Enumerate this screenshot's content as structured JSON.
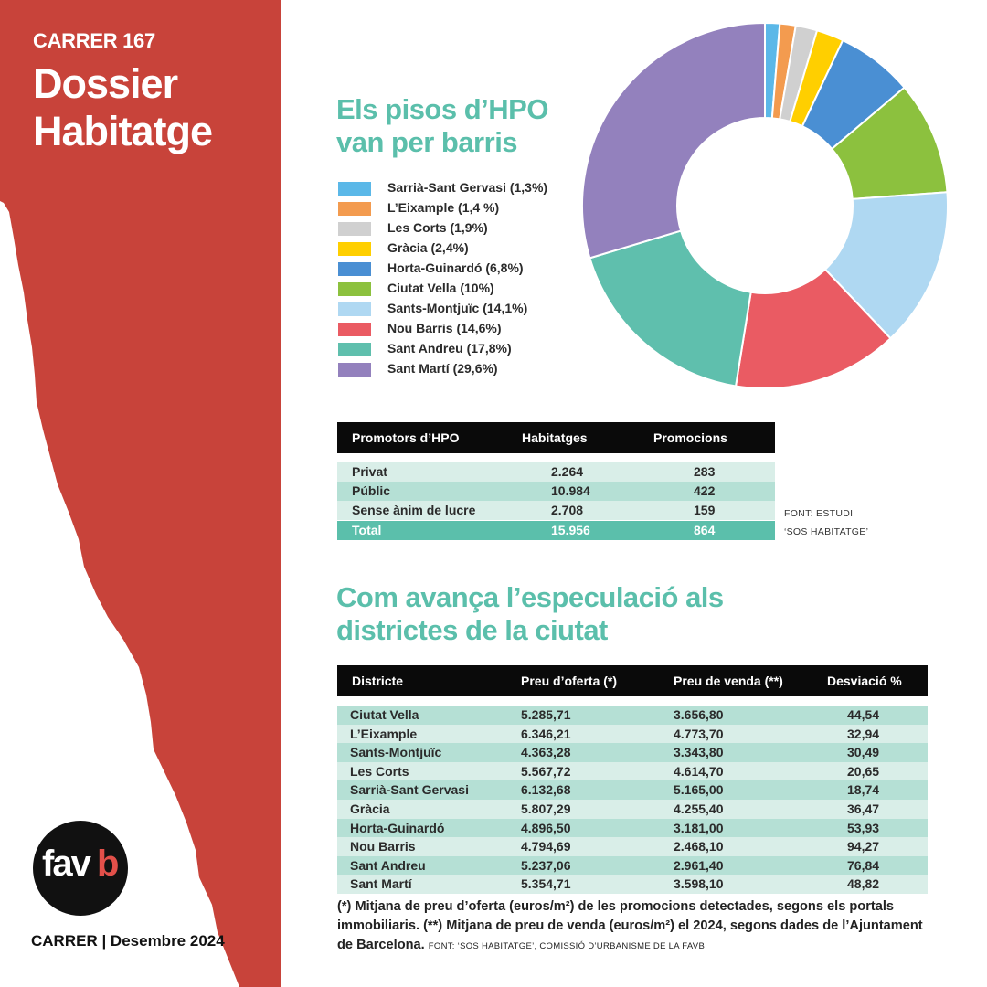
{
  "sidebar": {
    "issue": "CARRER 167",
    "title": "Dossier Habitatge",
    "footer": "CARRER | Desembre 2024",
    "logo_text": "fav",
    "logo_b": "b",
    "color": "#c8433a"
  },
  "section1": {
    "title": "Els pisos d’HPO van per barris"
  },
  "chart_data": {
    "type": "pie",
    "subtype": "donut",
    "title": "Els pisos d’HPO van per barris",
    "unit": "%",
    "slices": [
      {
        "label": "Sarrià-Sant Gervasi (1,3%)",
        "name": "Sarrià-Sant Gervasi",
        "value": 1.3,
        "color": "#5bb8e8"
      },
      {
        "label": "L’Eixample (1,4 %)",
        "name": "L’Eixample",
        "value": 1.4,
        "color": "#f39b4f"
      },
      {
        "label": "Les Corts (1,9%)",
        "name": "Les Corts",
        "value": 1.9,
        "color": "#d0d0d0"
      },
      {
        "label": "Gràcia (2,4%)",
        "name": "Gràcia",
        "value": 2.4,
        "color": "#ffcf00"
      },
      {
        "label": "Horta-Guinardó (6,8%)",
        "name": "Horta-Guinardó",
        "value": 6.8,
        "color": "#4a8fd3"
      },
      {
        "label": "Ciutat Vella (10%)",
        "name": "Ciutat Vella",
        "value": 10,
        "color": "#8cc13e"
      },
      {
        "label": "Sants-Montjuïc (14,1%)",
        "name": "Sants-Montjuïc",
        "value": 14.1,
        "color": "#afd8f2"
      },
      {
        "label": "Nou Barris (14,6%)",
        "name": "Nou Barris",
        "value": 14.6,
        "color": "#ea5b63"
      },
      {
        "label": "Sant Andreu (17,8%)",
        "name": "Sant Andreu",
        "value": 17.8,
        "color": "#5fbfad"
      },
      {
        "label": "Sant Martí (29,6%)",
        "name": "Sant Martí",
        "value": 29.6,
        "color": "#9381bd"
      }
    ]
  },
  "promotors_table": {
    "headers": [
      "Promotors d’HPO",
      "Habitatges",
      "Promocions"
    ],
    "rows": [
      [
        "Privat",
        "2.264",
        "283"
      ],
      [
        "Públic",
        "10.984",
        "422"
      ],
      [
        "Sense ànim de lucre",
        "2.708",
        "159"
      ]
    ],
    "total": [
      "Total",
      "15.956",
      "864"
    ],
    "source_line1": "FONT: ESTUDI",
    "source_line2": "‘SOS HABITATGE’"
  },
  "section2": {
    "title": "Com avança l’especulació als districtes de la ciutat"
  },
  "districts_table": {
    "headers": [
      "Districte",
      "Preu d’oferta (*)",
      "Preu de venda (**)",
      "Desviació %"
    ],
    "rows": [
      [
        "Ciutat Vella",
        "5.285,71",
        "3.656,80",
        "44,54"
      ],
      [
        "L’Eixample",
        "6.346,21",
        "4.773,70",
        "32,94"
      ],
      [
        "Sants-Montjuïc",
        "4.363,28",
        "3.343,80",
        "30,49"
      ],
      [
        "Les Corts",
        "5.567,72",
        "4.614,70",
        "20,65"
      ],
      [
        "Sarrià-Sant Gervasi",
        "6.132,68",
        "5.165,00",
        "18,74"
      ],
      [
        "Gràcia",
        "5.807,29",
        "4.255,40",
        "36,47"
      ],
      [
        "Horta-Guinardó",
        "4.896,50",
        "3.181,00",
        "53,93"
      ],
      [
        "Nou Barris",
        "4.794,69",
        "2.468,10",
        "94,27"
      ],
      [
        "Sant Andreu",
        "5.237,06",
        "2.961,40",
        "76,84"
      ],
      [
        "Sant Martí",
        "5.354,71",
        "3.598,10",
        "48,82"
      ]
    ]
  },
  "footnote": {
    "text": "(*) Mitjana de preu d’oferta (euros/m²) de les promocions detectades, segons els portals immobiliaris. (**) Mitjana de preu de venda (euros/m²) el 2024, segons dades de l’Ajuntament de Barcelona.",
    "source": "FONT: ‘SOS HABITATGE’, COMISSIÓ D’URBANISME DE LA FAVB"
  },
  "theme": {
    "teal": "#5bbfab",
    "teal_light": "#cfe8e1",
    "teal_mid": "#a9d9cd"
  }
}
